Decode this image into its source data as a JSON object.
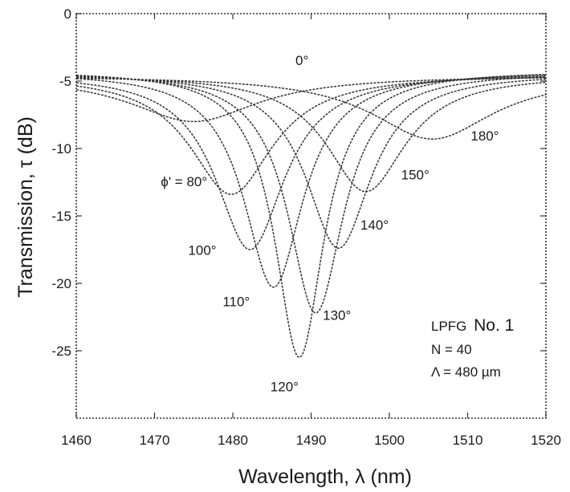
{
  "chart_data": {
    "type": "line",
    "xlabel": "Wavelength, λ (nm)",
    "ylabel": "Transmission, τ (dB)",
    "xlim": [
      1460,
      1520
    ],
    "ylim": [
      -30,
      0
    ],
    "x_ticks": [
      1460,
      1470,
      1480,
      1490,
      1500,
      1510,
      1520
    ],
    "x_tick_labels": [
      "1460",
      "1470",
      "1480",
      "1490",
      "1500",
      "1510",
      "1520"
    ],
    "y_ticks": [
      0,
      -5,
      -10,
      -15,
      -20,
      -25
    ],
    "y_tick_labels": [
      "0",
      "-5",
      "-10",
      "-15",
      "-20",
      "-25"
    ],
    "grid": false,
    "series": [
      {
        "name": "0°",
        "curve_label": "0°",
        "center": 1475,
        "min": -8,
        "width": 10,
        "base": -4.6,
        "label_at": [
          1488,
          -3.8
        ]
      },
      {
        "curve_label": "ϕ' = 80°",
        "center": 1479.8,
        "min": -13.4,
        "width": 6.5,
        "base": -4.5,
        "label_at": [
          1470.8,
          -12.8
        ]
      },
      {
        "curve_label": "100°",
        "center": 1482.2,
        "min": -17.5,
        "width": 5.4,
        "base": -4.4,
        "label_at": [
          1474.3,
          -17.9
        ]
      },
      {
        "curve_label": "110°",
        "center": 1485.2,
        "min": -20.3,
        "width": 4.6,
        "base": -4.3,
        "label_at": [
          1478.7,
          -21.7
        ]
      },
      {
        "curve_label": "120°",
        "center": 1488.5,
        "min": -25.5,
        "width": 3.8,
        "base": -4.2,
        "label_at": [
          1484.8,
          -28.0
        ]
      },
      {
        "curve_label": "130°",
        "center": 1490.6,
        "min": -22.2,
        "width": 4.3,
        "base": -4.3,
        "label_at": [
          1491.5,
          -22.7
        ]
      },
      {
        "curve_label": "140°",
        "center": 1493.5,
        "min": -17.4,
        "width": 5.1,
        "base": -4.4,
        "label_at": [
          1496.3,
          -16.0
        ]
      },
      {
        "curve_label": "150°",
        "center": 1497,
        "min": -13.2,
        "width": 6.2,
        "base": -4.5,
        "label_at": [
          1501.5,
          -12.3
        ]
      },
      {
        "curve_label": "180°",
        "center": 1505.5,
        "min": -9.3,
        "width": 9.5,
        "base": -4.6,
        "label_at": [
          1510.4,
          -9.4
        ]
      }
    ],
    "annotations": {
      "lpfg_prefix": "LPFG",
      "lpfg_number": "No. 1",
      "n_line": "N = 40",
      "period_line": "Λ = 480 µm"
    },
    "colors": {
      "curve": "#333333",
      "axis": "#333333"
    }
  }
}
